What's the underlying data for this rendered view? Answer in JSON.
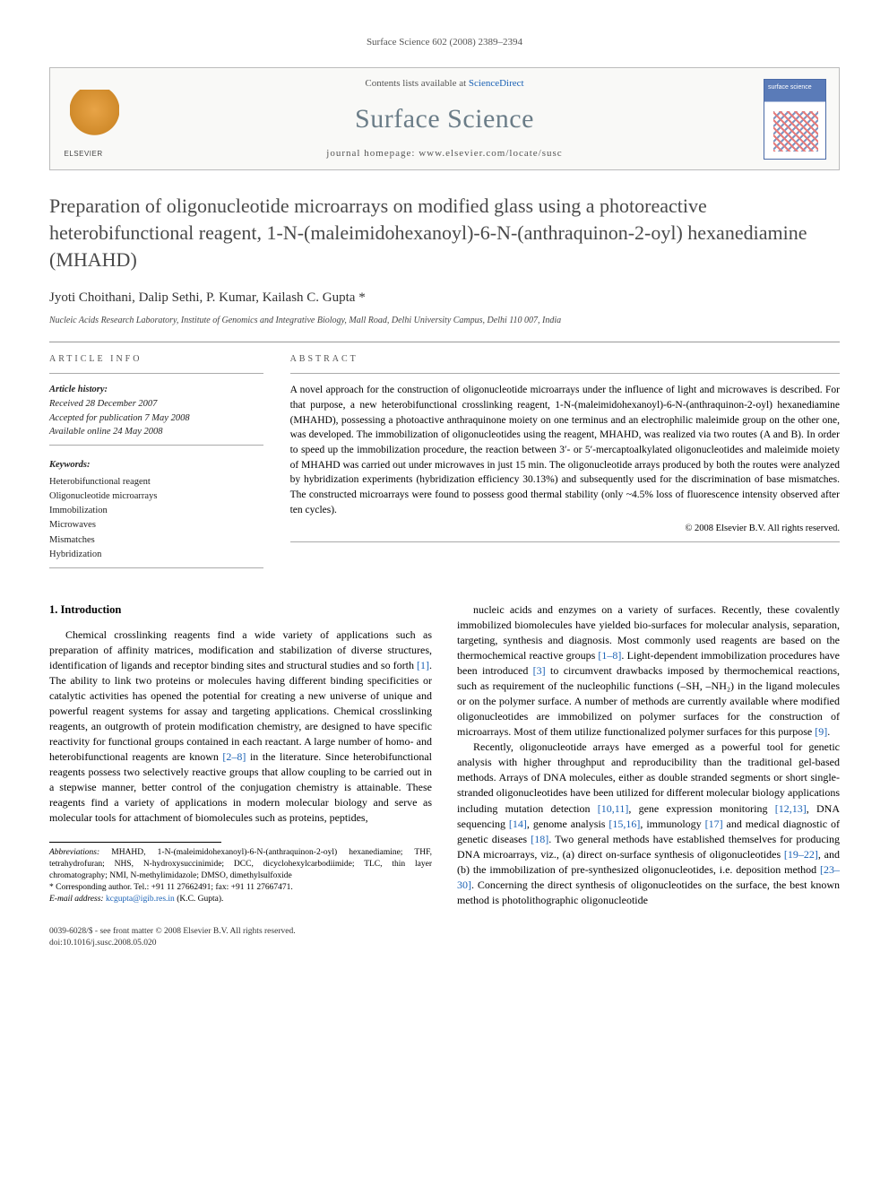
{
  "running_head": "Surface Science 602 (2008) 2389–2394",
  "journal_box": {
    "contents_line_pre": "Contents lists available at ",
    "sd_name": "ScienceDirect",
    "journal_title": "Surface Science",
    "homepage_line": "journal homepage: www.elsevier.com/locate/susc"
  },
  "article_title": "Preparation of oligonucleotide microarrays on modified glass using a photoreactive heterobifunctional reagent, 1-N-(maleimidohexanoyl)-6-N-(anthraquinon-2-oyl) hexanediamine (MHAHD)",
  "authors": "Jyoti Choithani, Dalip Sethi, P. Kumar, Kailash C. Gupta *",
  "affiliation": "Nucleic Acids Research Laboratory, Institute of Genomics and Integrative Biology, Mall Road, Delhi University Campus, Delhi 110 007, India",
  "info": {
    "label": "ARTICLE INFO",
    "history_label": "Article history:",
    "received": "Received 28 December 2007",
    "accepted": "Accepted for publication 7 May 2008",
    "online": "Available online 24 May 2008",
    "keywords_label": "Keywords:",
    "keywords": [
      "Heterobifunctional reagent",
      "Oligonucleotide microarrays",
      "Immobilization",
      "Microwaves",
      "Mismatches",
      "Hybridization"
    ]
  },
  "abstract": {
    "label": "ABSTRACT",
    "text": "A novel approach for the construction of oligonucleotide microarrays under the influence of light and microwaves is described. For that purpose, a new heterobifunctional crosslinking reagent, 1-N-(maleimidohexanoyl)-6-N-(anthraquinon-2-oyl) hexanediamine (MHAHD), possessing a photoactive anthraquinone moiety on one terminus and an electrophilic maleimide group on the other one, was developed. The immobilization of oligonucleotides using the reagent, MHAHD, was realized via two routes (A and B). In order to speed up the immobilization procedure, the reaction between 3′- or 5′-mercaptoalkylated oligonucleotides and maleimide moiety of MHAHD was carried out under microwaves in just 15 min. The oligonucleotide arrays produced by both the routes were analyzed by hybridization experiments (hybridization efficiency 30.13%) and subsequently used for the discrimination of base mismatches. The constructed microarrays were found to possess good thermal stability (only ~4.5% loss of fluorescence intensity observed after ten cycles).",
    "copyright": "© 2008 Elsevier B.V. All rights reserved."
  },
  "sections": {
    "intro_heading": "1. Introduction",
    "para1": "Chemical crosslinking reagents find a wide variety of applications such as preparation of affinity matrices, modification and stabilization of diverse structures, identification of ligands and receptor binding sites and structural studies and so forth [1]. The ability to link two proteins or molecules having different binding specificities or catalytic activities has opened the potential for creating a new universe of unique and powerful reagent systems for assay and targeting applications. Chemical crosslinking reagents, an outgrowth of protein modification chemistry, are designed to have specific reactivity for functional groups contained in each reactant. A large number of homo- and heterobifunctional reagents are known [2–8] in the literature. Since heterobifunctional reagents possess two selectively reactive groups that allow coupling to be carried out in a stepwise manner, better control of the conjugation chemistry is attainable. These reagents find a variety of applications in modern molecular biology and serve as molecular tools for attachment of biomolecules such as proteins, peptides,",
    "para2": "nucleic acids and enzymes on a variety of surfaces. Recently, these covalently immobilized biomolecules have yielded bio-surfaces for molecular analysis, separation, targeting, synthesis and diagnosis. Most commonly used reagents are based on the thermochemical reactive groups [1–8]. Light-dependent immobilization procedures have been introduced [3] to circumvent drawbacks imposed by thermochemical reactions, such as requirement of the nucleophilic functions (–SH, –NH₂) in the ligand molecules or on the polymer surface. A number of methods are currently available where modified oligonucleotides are immobilized on polymer surfaces for the construction of microarrays. Most of them utilize functionalized polymer surfaces for this purpose [9].",
    "para3": "Recently, oligonucleotide arrays have emerged as a powerful tool for genetic analysis with higher throughput and reproducibility than the traditional gel-based methods. Arrays of DNA molecules, either as double stranded segments or short single-stranded oligonucleotides have been utilized for different molecular biology applications including mutation detection [10,11], gene expression monitoring [12,13], DNA sequencing [14], genome analysis [15,16], immunology [17] and medical diagnostic of genetic diseases [18]. Two general methods have established themselves for producing DNA microarrays, viz., (a) direct on-surface synthesis of oligonucleotides [19–22], and (b) the immobilization of pre-synthesized oligonucleotides, i.e. deposition method [23–30]. Concerning the direct synthesis of oligonucleotides on the surface, the best known method is photolithographic oligonucleotide"
  },
  "footnotes": {
    "abbrev_label": "Abbreviations:",
    "abbrev_text": " MHAHD, 1-N-(maleimidohexanoyl)-6-N-(anthraquinon-2-oyl) hexanediamine; THF, tetrahydrofuran; NHS, N-hydroxysuccinimide; DCC, dicyclohexylcarbodiimide; TLC, thin layer chromatography; NMI, N-methylimidazole; DMSO, dimethylsulfoxide",
    "corr_label": "* Corresponding author.",
    "corr_text": " Tel.: +91 11 27662491; fax: +91 11 27667471.",
    "email_label": "E-mail address:",
    "email": " kcgupta@igib.res.in",
    "email_who": " (K.C. Gupta)."
  },
  "doi": {
    "line1": "0039-6028/$ - see front matter © 2008 Elsevier B.V. All rights reserved.",
    "line2": "doi:10.1016/j.susc.2008.05.020"
  },
  "colors": {
    "link": "#1b62b5",
    "title_gray": "#4a4a4a",
    "journal_gray": "#6b7d88"
  }
}
